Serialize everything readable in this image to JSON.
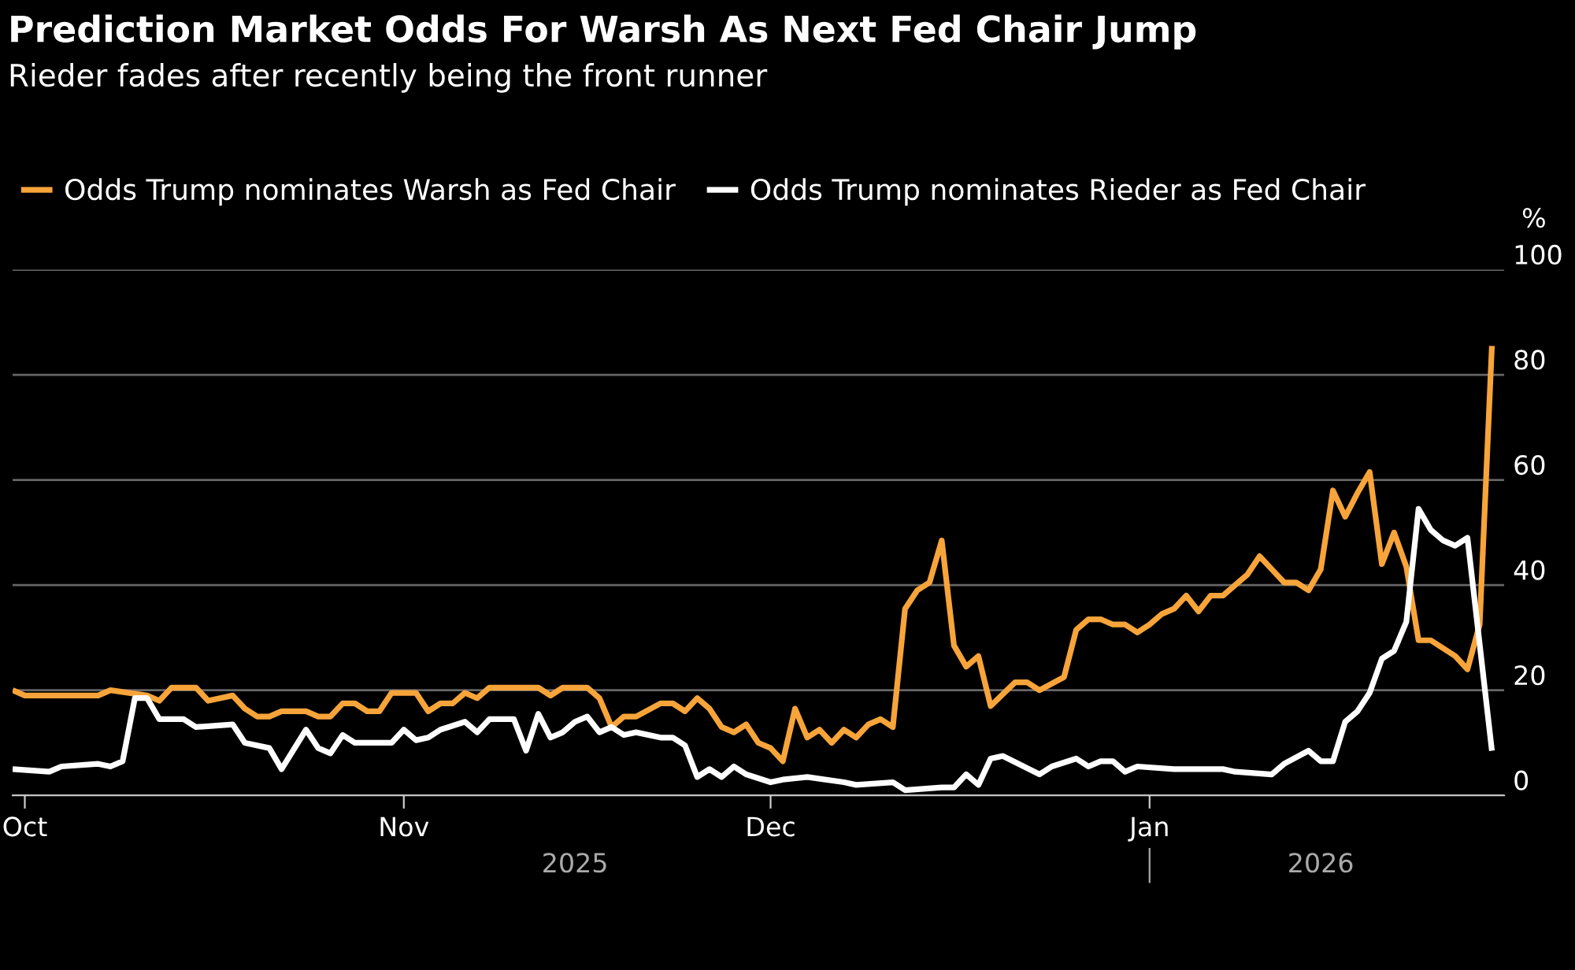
{
  "chart_data": {
    "type": "line",
    "title": "Prediction Market Odds For Warsh As Next Fed Chair Jump",
    "subtitle": "Rieder fades after recently being the front runner",
    "ylabel": "%",
    "series": [
      {
        "name": "Odds Trump nominates Warsh as Fed Chair",
        "color": "#f7a43a",
        "x": [
          "2025-09-30",
          "2025-10-01",
          "2025-10-07",
          "2025-10-08",
          "2025-10-11",
          "2025-10-12",
          "2025-10-13",
          "2025-10-15",
          "2025-10-16",
          "2025-10-18",
          "2025-10-19",
          "2025-10-20",
          "2025-10-21",
          "2025-10-22",
          "2025-10-24",
          "2025-10-25",
          "2025-10-26",
          "2025-10-27",
          "2025-10-28",
          "2025-10-29",
          "2025-10-30",
          "2025-10-31",
          "2025-11-02",
          "2025-11-03",
          "2025-11-04",
          "2025-11-05",
          "2025-11-06",
          "2025-11-07",
          "2025-11-08",
          "2025-11-12",
          "2025-11-13",
          "2025-11-14",
          "2025-11-16",
          "2025-11-17",
          "2025-11-18",
          "2025-11-19",
          "2025-11-20",
          "2025-11-22",
          "2025-11-23",
          "2025-11-24",
          "2025-11-25",
          "2025-11-26",
          "2025-11-27",
          "2025-11-28",
          "2025-11-29",
          "2025-11-30",
          "2025-12-01",
          "2025-12-02",
          "2025-12-03",
          "2025-12-04",
          "2025-12-05",
          "2025-12-06",
          "2025-12-07",
          "2025-12-08",
          "2025-12-09",
          "2025-12-10",
          "2025-12-11",
          "2025-12-12",
          "2025-12-13",
          "2025-12-14",
          "2025-12-15",
          "2025-12-16",
          "2025-12-17",
          "2025-12-18",
          "2025-12-19",
          "2025-12-21",
          "2025-12-22",
          "2025-12-23",
          "2025-12-25",
          "2025-12-26",
          "2025-12-27",
          "2025-12-28",
          "2025-12-29",
          "2025-12-30",
          "2025-12-31",
          "2026-01-01",
          "2026-01-02",
          "2026-01-03",
          "2026-01-04",
          "2026-01-05",
          "2026-01-06",
          "2026-01-07",
          "2026-01-09",
          "2026-01-10",
          "2026-01-11",
          "2026-01-12",
          "2026-01-13",
          "2026-01-14",
          "2026-01-15",
          "2026-01-16",
          "2026-01-17",
          "2026-01-18",
          "2026-01-19",
          "2026-01-20",
          "2026-01-21",
          "2026-01-22",
          "2026-01-23",
          "2026-01-24",
          "2026-01-25",
          "2026-01-26",
          "2026-01-27",
          "2026-01-28",
          "2026-01-29"
        ],
        "values": [
          20,
          19,
          19,
          20,
          19,
          18,
          20.5,
          20.5,
          18,
          19,
          16.5,
          15,
          15,
          16,
          16,
          15,
          15,
          17.5,
          17.5,
          16,
          16,
          19.5,
          19.5,
          16,
          17.5,
          17.5,
          19.5,
          18.5,
          20.5,
          20.5,
          19,
          20.5,
          20.5,
          18.5,
          13,
          15,
          15,
          17.5,
          17.5,
          16,
          18.5,
          16.5,
          13,
          12,
          13.5,
          10,
          9,
          6.5,
          16.5,
          11,
          12.5,
          10,
          12.5,
          11,
          13.5,
          14.5,
          13,
          35.5,
          39,
          40.5,
          48.5,
          28.5,
          24.5,
          26.5,
          17,
          21.5,
          21.5,
          20,
          22.5,
          31.5,
          33.5,
          33.5,
          32.5,
          32.5,
          31,
          32.5,
          34.5,
          35.5,
          38,
          35,
          38,
          38,
          42,
          45.5,
          43,
          40.5,
          40.5,
          39,
          43,
          58,
          53,
          57.5,
          61.5,
          44,
          50,
          43.5,
          29.5,
          29.5,
          28,
          26.5,
          24,
          32.5,
          85.5
        ]
      },
      {
        "name": "Odds Trump nominates Rieder as Fed Chair",
        "color": "#ffffff",
        "x": [
          "2025-09-30",
          "2025-10-03",
          "2025-10-04",
          "2025-10-07",
          "2025-10-08",
          "2025-10-09",
          "2025-10-10",
          "2025-10-11",
          "2025-10-12",
          "2025-10-14",
          "2025-10-15",
          "2025-10-18",
          "2025-10-19",
          "2025-10-21",
          "2025-10-22",
          "2025-10-24",
          "2025-10-25",
          "2025-10-26",
          "2025-10-27",
          "2025-10-28",
          "2025-10-31",
          "2025-11-01",
          "2025-11-02",
          "2025-11-03",
          "2025-11-04",
          "2025-11-06",
          "2025-11-07",
          "2025-11-08",
          "2025-11-10",
          "2025-11-11",
          "2025-11-12",
          "2025-11-13",
          "2025-11-14",
          "2025-11-15",
          "2025-11-16",
          "2025-11-17",
          "2025-11-18",
          "2025-11-19",
          "2025-11-20",
          "2025-11-22",
          "2025-11-23",
          "2025-11-24",
          "2025-11-25",
          "2025-11-26",
          "2025-11-27",
          "2025-11-28",
          "2025-11-29",
          "2025-12-01",
          "2025-12-02",
          "2025-12-04",
          "2025-12-07",
          "2025-12-08",
          "2025-12-11",
          "2025-12-12",
          "2025-12-15",
          "2025-12-16",
          "2025-12-17",
          "2025-12-18",
          "2025-12-19",
          "2025-12-20",
          "2025-12-23",
          "2025-12-24",
          "2025-12-26",
          "2025-12-27",
          "2025-12-28",
          "2025-12-29",
          "2025-12-30",
          "2025-12-31",
          "2026-01-03",
          "2026-01-07",
          "2026-01-08",
          "2026-01-11",
          "2026-01-12",
          "2026-01-14",
          "2026-01-15",
          "2026-01-16",
          "2026-01-17",
          "2026-01-18",
          "2026-01-19",
          "2026-01-20",
          "2026-01-21",
          "2026-01-22",
          "2026-01-23",
          "2026-01-24",
          "2026-01-25",
          "2026-01-26",
          "2026-01-27",
          "2026-01-29"
        ],
        "values": [
          5,
          4.5,
          5.5,
          6,
          5.5,
          6.5,
          18.5,
          18.5,
          14.5,
          14.5,
          13,
          13.5,
          10,
          9,
          5,
          12.5,
          9,
          8,
          11.5,
          10,
          10,
          12.5,
          10.5,
          11,
          12.5,
          14,
          12,
          14.5,
          14.5,
          8.5,
          15.5,
          11,
          12,
          14,
          15,
          12,
          13,
          11.5,
          12,
          11,
          11,
          9.5,
          3.5,
          5,
          3.5,
          5.5,
          4,
          2.5,
          3,
          3.5,
          2.5,
          2,
          2.5,
          1,
          1.5,
          1.5,
          4,
          2,
          7,
          7.5,
          4,
          5.5,
          7,
          5.5,
          6.5,
          6.5,
          4.5,
          5.5,
          5,
          5,
          4.5,
          4,
          6,
          8.5,
          6.5,
          6.5,
          14,
          16,
          19.5,
          26,
          27.5,
          33,
          54.5,
          50.5,
          48.5,
          47.5,
          49,
          8.5
        ]
      }
    ],
    "xlim": [
      "2025-09-30",
      "2026-01-30"
    ],
    "xticks": [
      {
        "value": "2025-10-01",
        "label": "Oct"
      },
      {
        "value": "2025-11-01",
        "label": "Nov"
      },
      {
        "value": "2025-12-01",
        "label": "Dec"
      },
      {
        "value": "2026-01-01",
        "label": "Jan"
      }
    ],
    "x2lim": [
      "2025-09-30",
      "2026-01-30"
    ],
    "x2ticks": [
      {
        "value": "2025-11-15",
        "label": "2025"
      },
      {
        "value": "2026-01-01",
        "label": null
      },
      {
        "value": "2026-01-15",
        "label": "2026"
      }
    ],
    "ylim": [
      0,
      100
    ],
    "yticks": [
      0,
      20,
      40,
      60,
      80,
      100
    ],
    "grid": "y",
    "legend": "top left",
    "line_style": "solid",
    "marker": "none"
  }
}
